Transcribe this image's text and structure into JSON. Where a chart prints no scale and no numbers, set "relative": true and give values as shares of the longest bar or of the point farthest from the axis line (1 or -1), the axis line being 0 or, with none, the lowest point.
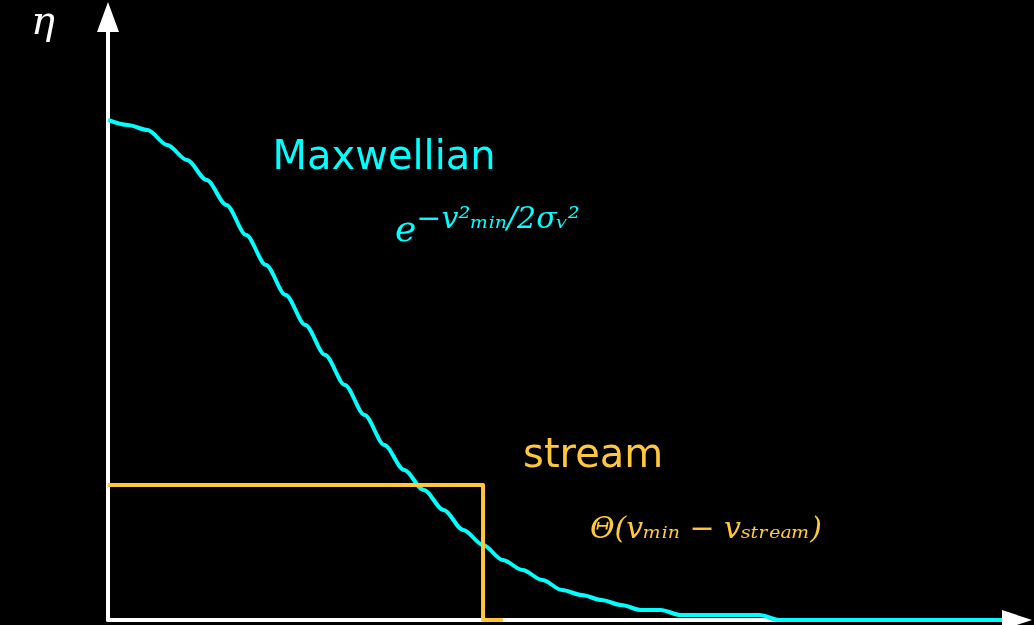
{
  "chart_data": {
    "type": "line",
    "ylabel": "η",
    "relative": true,
    "marker": "none",
    "grid": false,
    "legend": false,
    "categories": [
      null,
      null,
      null,
      null,
      null,
      null,
      null,
      null,
      null,
      null,
      null,
      null,
      null,
      null,
      null,
      null,
      null,
      null,
      null,
      null,
      null,
      null,
      null,
      null,
      null,
      null,
      null,
      null,
      null,
      null,
      null,
      null,
      null,
      null,
      null,
      null,
      null,
      null,
      null,
      null,
      null,
      null,
      null,
      null,
      null,
      null,
      null
    ],
    "series": [
      {
        "name": "Maxwellian",
        "type": "line",
        "color": "#00ffff",
        "values": [
          1,
          0.99,
          0.98,
          0.95,
          0.92,
          0.88,
          0.83,
          0.77,
          0.71,
          0.65,
          0.59,
          0.53,
          0.47,
          0.41,
          0.35,
          0.3,
          0.26,
          0.22,
          0.18,
          0.15,
          0.12,
          0.1,
          0.08,
          0.06,
          0.05,
          0.04,
          0.03,
          0.02,
          0.02,
          0.01,
          0.01,
          0.01,
          0.01,
          0.01,
          0,
          0,
          0,
          0,
          0,
          0,
          0,
          0,
          0,
          0,
          0,
          0,
          0
        ]
      },
      {
        "name": "stream",
        "type": "step",
        "color": "#ffc83c",
        "values": [
          0.27,
          0.27,
          0.27,
          0.27,
          0.27,
          0.27,
          0.27,
          0.27,
          0.27,
          0.27,
          0.27,
          0.27,
          0.27,
          0.27,
          0.27,
          0.27,
          0.27,
          0.27,
          0.27,
          0.27,
          0,
          null,
          null,
          null,
          null,
          null,
          null,
          null,
          null,
          null,
          null,
          null,
          null,
          null,
          null,
          null,
          null,
          null,
          null,
          null,
          null,
          null,
          null,
          null,
          null,
          null,
          null
        ]
      }
    ],
    "annotations": [
      "e$^{−v²ₘᵢₙ/2σᵥ²}$",
      "Θ(vₘᵢₙ − vₛₜᵣₑₐₘ)"
    ]
  }
}
